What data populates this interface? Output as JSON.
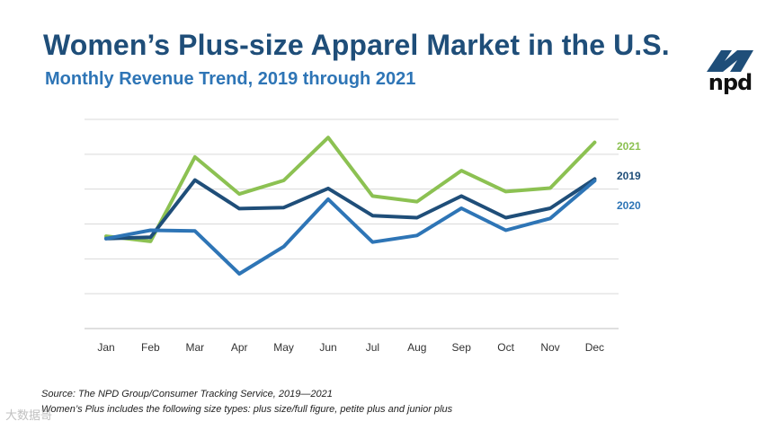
{
  "header": {
    "title": "Women’s Plus-size Apparel Market in the U.S.",
    "subtitle": "Monthly Revenue Trend, 2019 through 2021"
  },
  "logo": {
    "text": "npd",
    "icon": "npd-swoosh-icon",
    "color": "#1f4e79"
  },
  "chart_data": {
    "type": "line",
    "title": "Women’s Plus-size Apparel Market in the U.S.",
    "subtitle": "Monthly Revenue Trend, 2019 through 2021",
    "xlabel": "",
    "ylabel": "",
    "categories": [
      "Jan",
      "Feb",
      "Mar",
      "Apr",
      "May",
      "Jun",
      "Jul",
      "Aug",
      "Sep",
      "Oct",
      "Nov",
      "Dec"
    ],
    "ylim": [
      0,
      6
    ],
    "grid": true,
    "y_tick_labels": false,
    "legend": "right-end inline labels",
    "series": [
      {
        "name": "2021",
        "color": "#8cc152",
        "values": [
          2.65,
          2.5,
          4.92,
          3.86,
          4.25,
          5.48,
          3.8,
          3.64,
          4.53,
          3.93,
          4.03,
          5.34
        ]
      },
      {
        "name": "2019",
        "color": "#1f4e79",
        "values": [
          2.58,
          2.62,
          4.26,
          3.44,
          3.47,
          4.02,
          3.24,
          3.18,
          3.8,
          3.18,
          3.45,
          4.29
        ]
      },
      {
        "name": "2020",
        "color": "#2e75b6",
        "values": [
          2.58,
          2.82,
          2.8,
          1.57,
          2.35,
          3.71,
          2.48,
          2.67,
          3.45,
          2.82,
          3.16,
          4.24
        ]
      }
    ]
  },
  "footnotes": {
    "source": "Source: The NPD Group/Consumer Tracking Service, 2019—2021",
    "note": "Women’s Plus includes the following size types: plus size/full figure, petite plus and junior plus"
  },
  "watermark": {
    "text": "大数据哥"
  }
}
